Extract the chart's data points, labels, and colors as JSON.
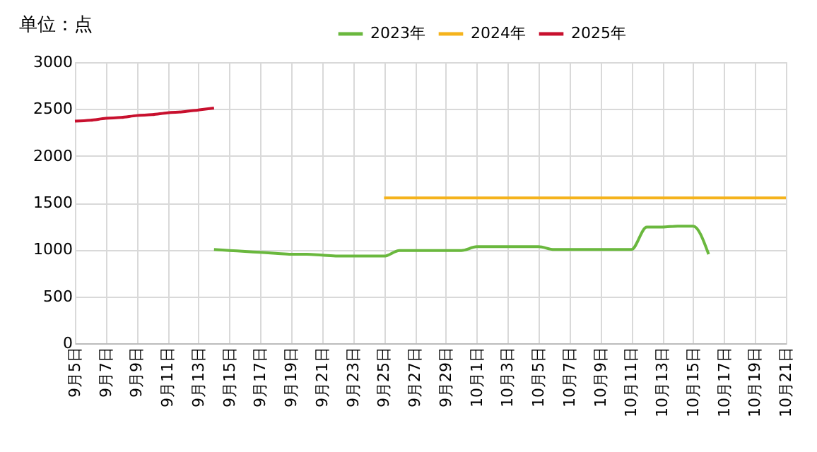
{
  "chart_data": {
    "type": "line",
    "ylabel": "单位：点",
    "categories": [
      "9月5日",
      null,
      "9月7日",
      null,
      "9月9日",
      null,
      "9月11日",
      null,
      "9月13日",
      null,
      "9月15日",
      null,
      "9月17日",
      null,
      "9月19日",
      null,
      "9月21日",
      null,
      "9月23日",
      null,
      "9月25日",
      null,
      "9月27日",
      null,
      "9月29日",
      null,
      "10月1日",
      null,
      "10月3日",
      null,
      "10月5日",
      null,
      "10月7日",
      null,
      "10月9日",
      null,
      "10月11日",
      null,
      "10月13日",
      null,
      "10月15日",
      null,
      "10月17日",
      null,
      "10月19日",
      null,
      "10月21日"
    ],
    "series": [
      {
        "name": "2023年",
        "color": "#6ab83e",
        "values": [
          null,
          null,
          null,
          null,
          null,
          null,
          null,
          null,
          null,
          1000,
          990,
          980,
          970,
          960,
          950,
          950,
          940,
          930,
          930,
          930,
          930,
          990,
          990,
          990,
          990,
          990,
          1030,
          1030,
          1030,
          1030,
          1030,
          1000,
          1000,
          1000,
          1000,
          1000,
          1000,
          1240,
          1240,
          1250,
          1250,
          950,
          null,
          null,
          null,
          null,
          null
        ]
      },
      {
        "name": "2024年",
        "color": "#f5b31c",
        "values": [
          null,
          null,
          null,
          null,
          null,
          null,
          null,
          null,
          null,
          null,
          null,
          null,
          null,
          null,
          null,
          null,
          null,
          null,
          null,
          null,
          1550,
          1550,
          1550,
          1550,
          1550,
          1550,
          1550,
          1550,
          1550,
          1550,
          1550,
          1550,
          1550,
          1550,
          1550,
          1550,
          1550,
          1550,
          1550,
          1550,
          1550,
          1550,
          1550,
          1550,
          1550,
          1550,
          1550
        ]
      },
      {
        "name": "2025年",
        "color": "#c8102e",
        "values": [
          2370,
          2380,
          2400,
          2410,
          2430,
          2440,
          2460,
          2470,
          2490,
          2510,
          null,
          null,
          null,
          null,
          null,
          null,
          null,
          null,
          null,
          null,
          null,
          null,
          null,
          null,
          null,
          null,
          null,
          null,
          null,
          null,
          null,
          null,
          null,
          null,
          null,
          null,
          null,
          null,
          null,
          null,
          null,
          null,
          null,
          null,
          null,
          null,
          null
        ]
      }
    ],
    "ylim": [
      0,
      3000
    ],
    "yticks": [
      0,
      500,
      1000,
      1500,
      2000,
      2500,
      3000
    ],
    "grid": true,
    "legend": "top",
    "marker": "none",
    "line_style": "solid"
  }
}
